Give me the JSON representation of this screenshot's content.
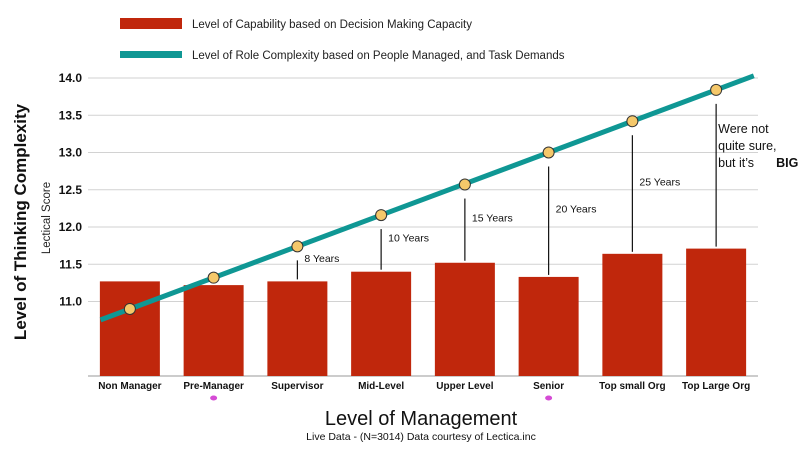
{
  "chart_data": {
    "type": "bar",
    "title": "",
    "xlabel": "Level of Management",
    "ylabel": "Level of Thinking Complexity",
    "ylabel_secondary": "Lectical Score",
    "caption": "Live Data - (N=3014)  Data courtesy of Lectica.inc",
    "ylim": [
      10.0,
      14.0
    ],
    "yticks": [
      "11.0",
      "11.5",
      "12.0",
      "12.5",
      "13.0",
      "13.5",
      "14.0"
    ],
    "grid": true,
    "legend_position": "top-left",
    "categories": [
      "Non Manager",
      "Pre-Manager",
      "Supervisor",
      "Mid-Level",
      "Upper Level",
      "Senior",
      "Top small Org",
      "Top Large Org"
    ],
    "series": [
      {
        "name": "Level of Capability based on Decision Making Capacity",
        "type": "bar",
        "color": "#c0270c",
        "values": [
          11.27,
          11.22,
          11.27,
          11.4,
          11.52,
          11.33,
          11.64,
          11.71
        ]
      },
      {
        "name": "Level of Role Complexity based on People Managed, and Task Demands",
        "type": "line",
        "color": "#0f9794",
        "marker_color": "#f5c86a",
        "values": [
          10.9,
          11.32,
          11.74,
          12.16,
          12.57,
          13.0,
          13.42,
          13.84
        ]
      }
    ],
    "gap_annotations": [
      {
        "category": "Supervisor",
        "text": "8 Years"
      },
      {
        "category": "Mid-Level",
        "text": "10 Years"
      },
      {
        "category": "Upper Level",
        "text": "15 Years"
      },
      {
        "category": "Senior",
        "text": "20 Years"
      },
      {
        "category": "Top small Org",
        "text": "25 Years"
      }
    ],
    "big_note": {
      "category": "Top Large Org",
      "lines": [
        "Were not",
        "quite sure,",
        "but it’s "
      ],
      "emphasis": "BIG !"
    },
    "dot_markers": [
      "Pre-Manager",
      "Senior"
    ],
    "dot_color": "#d54bd5"
  }
}
